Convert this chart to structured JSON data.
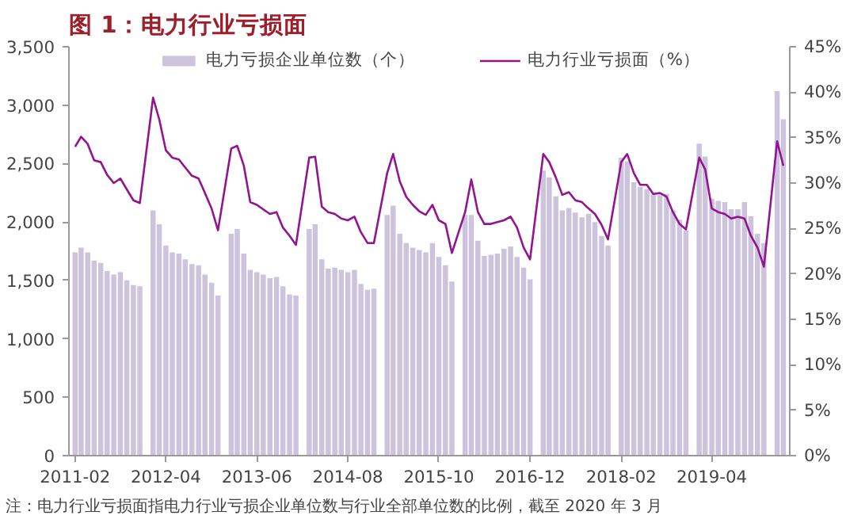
{
  "chart_data": {
    "type": "bar",
    "title": "图 1：电力行业亏损面",
    "annotations": [
      "注：电力行业亏损面指电力行业亏损企业单位数与行业全部单位数的比例，截至 2020 年 3 月"
    ],
    "x": [
      "2011-02",
      "2011-03",
      "2011-04",
      "2011-05",
      "2011-06",
      "2011-07",
      "2011-08",
      "2011-09",
      "2011-10",
      "2011-11",
      "2011-12",
      "2012-02",
      "2012-03",
      "2012-04",
      "2012-05",
      "2012-06",
      "2012-07",
      "2012-08",
      "2012-09",
      "2012-10",
      "2012-11",
      "2012-12",
      "2013-02",
      "2013-03",
      "2013-04",
      "2013-05",
      "2013-06",
      "2013-07",
      "2013-08",
      "2013-09",
      "2013-10",
      "2013-11",
      "2013-12",
      "2014-02",
      "2014-03",
      "2014-04",
      "2014-05",
      "2014-06",
      "2014-07",
      "2014-08",
      "2014-09",
      "2014-10",
      "2014-11",
      "2014-12",
      "2015-02",
      "2015-03",
      "2015-04",
      "2015-05",
      "2015-06",
      "2015-07",
      "2015-08",
      "2015-09",
      "2015-10",
      "2015-11",
      "2015-12",
      "2016-02",
      "2016-03",
      "2016-04",
      "2016-05",
      "2016-06",
      "2016-07",
      "2016-08",
      "2016-09",
      "2016-10",
      "2016-11",
      "2016-12",
      "2017-02",
      "2017-03",
      "2017-04",
      "2017-05",
      "2017-06",
      "2017-07",
      "2017-08",
      "2017-09",
      "2017-10",
      "2017-11",
      "2017-12",
      "2018-02",
      "2018-03",
      "2018-04",
      "2018-05",
      "2018-06",
      "2018-07",
      "2018-08",
      "2018-09",
      "2018-10",
      "2018-11",
      "2018-12",
      "2019-02",
      "2019-03",
      "2019-04",
      "2019-05",
      "2019-06",
      "2019-07",
      "2019-08",
      "2019-09",
      "2019-10",
      "2019-11",
      "2019-12",
      "2020-02",
      "2020-03"
    ],
    "series": [
      {
        "name": "电力亏损企业单位数（个）",
        "type": "bar",
        "color": "#cdc3dd",
        "values": [
          1740,
          1780,
          1740,
          1670,
          1650,
          1580,
          1550,
          1570,
          1500,
          1460,
          1450,
          2100,
          1980,
          1800,
          1740,
          1730,
          1680,
          1640,
          1630,
          1550,
          1480,
          1370,
          1900,
          1940,
          1730,
          1590,
          1570,
          1550,
          1520,
          1530,
          1450,
          1380,
          1370,
          1940,
          1980,
          1680,
          1600,
          1610,
          1590,
          1570,
          1590,
          1470,
          1420,
          1430,
          2060,
          2140,
          1900,
          1820,
          1780,
          1760,
          1740,
          1820,
          1700,
          1630,
          1490,
          2060,
          2060,
          1840,
          1710,
          1720,
          1730,
          1770,
          1790,
          1700,
          1610,
          1510,
          2440,
          2380,
          2220,
          2100,
          2120,
          2080,
          2040,
          2070,
          2000,
          1880,
          1800,
          2550,
          2520,
          2340,
          2300,
          2280,
          2240,
          2230,
          2240,
          2100,
          2020,
          1930,
          2670,
          2560,
          2200,
          2180,
          2170,
          2110,
          2110,
          2170,
          2050,
          1900,
          1820,
          3120,
          2880
        ]
      },
      {
        "name": "电力行业亏损面（%）",
        "type": "line",
        "axis": "y2",
        "color": "#93148f",
        "values": [
          34.0,
          35.1,
          34.3,
          32.5,
          32.3,
          30.9,
          30.0,
          30.5,
          29.3,
          28.1,
          27.8,
          39.4,
          37.0,
          33.6,
          32.8,
          32.6,
          31.7,
          30.8,
          30.5,
          28.9,
          27.2,
          24.8,
          33.8,
          34.1,
          31.9,
          27.9,
          27.6,
          27.1,
          26.6,
          26.8,
          25.1,
          24.2,
          23.2,
          32.8,
          32.9,
          27.4,
          26.8,
          26.6,
          26.1,
          25.9,
          26.3,
          24.6,
          23.4,
          23.4,
          31.1,
          33.2,
          30.2,
          28.5,
          27.6,
          26.9,
          26.5,
          27.6,
          25.9,
          25.5,
          22.3,
          26.8,
          30.4,
          26.8,
          25.5,
          25.5,
          25.7,
          25.9,
          26.3,
          25.1,
          22.9,
          21.6,
          33.2,
          32.3,
          30.6,
          28.7,
          29.0,
          28.1,
          27.9,
          27.2,
          26.6,
          25.4,
          23.8,
          32.3,
          33.2,
          31.1,
          29.8,
          29.8,
          28.8,
          28.9,
          28.5,
          26.8,
          25.5,
          24.9,
          32.8,
          31.5,
          27.2,
          26.8,
          26.6,
          26.1,
          26.3,
          26.1,
          24.2,
          22.9,
          20.8,
          34.6,
          31.9
        ]
      }
    ],
    "xlim": [
      "2011-01-17",
      "2020-04-14"
    ],
    "xticks": [
      "2011-02",
      "2012-04",
      "2013-06",
      "2014-08",
      "2015-10",
      "2016-12",
      "2018-02",
      "2019-04"
    ],
    "ylim": [
      0,
      3500
    ],
    "yticks": [
      {
        "value": 0,
        "label": "0"
      },
      {
        "value": 500,
        "label": "500"
      },
      {
        "value": 1000,
        "label": "1,000"
      },
      {
        "value": 1500,
        "label": "1,500"
      },
      {
        "value": 2000,
        "label": "2,000"
      },
      {
        "value": 2500,
        "label": "2,500"
      },
      {
        "value": 3000,
        "label": "3,000"
      },
      {
        "value": 3500,
        "label": "3,500"
      }
    ],
    "y2lim": [
      0,
      45
    ],
    "y2ticks": [
      {
        "value": 0,
        "label": "0%"
      },
      {
        "value": 5,
        "label": "5%"
      },
      {
        "value": 10,
        "label": "10%"
      },
      {
        "value": 15,
        "label": "15%"
      },
      {
        "value": 20,
        "label": "20%"
      },
      {
        "value": 25,
        "label": "25%"
      },
      {
        "value": 30,
        "label": "30%"
      },
      {
        "value": 35,
        "label": "35%"
      },
      {
        "value": 40,
        "label": "40%"
      },
      {
        "value": 45,
        "label": "45%"
      }
    ],
    "grid": false,
    "legend": "top"
  }
}
